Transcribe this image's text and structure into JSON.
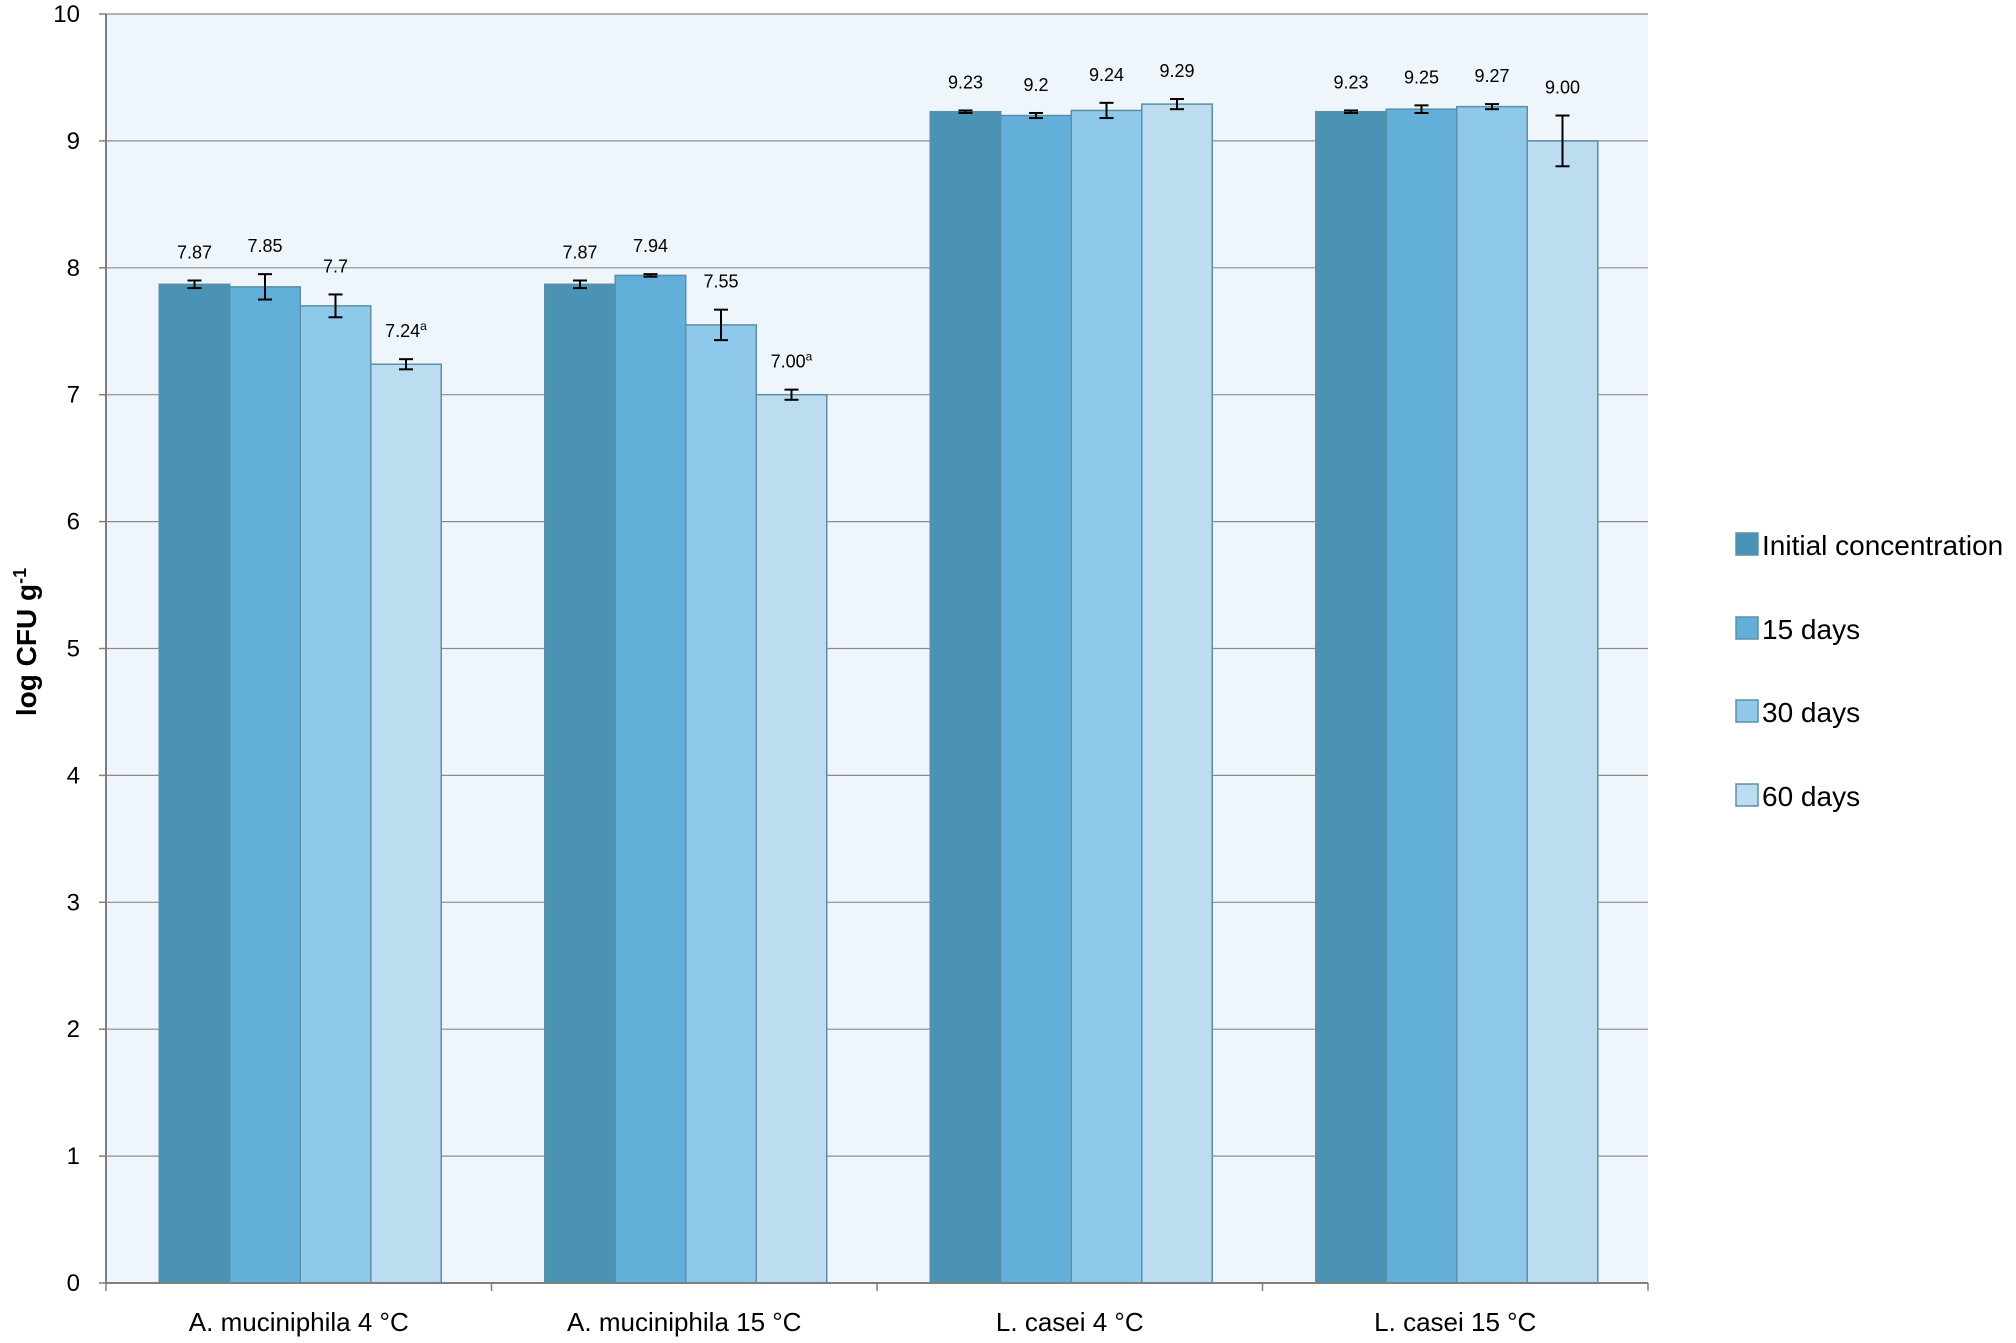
{
  "chart_data": {
    "type": "bar",
    "title": "",
    "xlabel": "",
    "ylabel": "log CFU g",
    "ylabel_sup": "-1",
    "ylim": [
      0,
      10
    ],
    "yticks": [
      "0",
      "1",
      "2",
      "3",
      "4",
      "5",
      "6",
      "7",
      "8",
      "9",
      "10"
    ],
    "grid": true,
    "legend_position": "right",
    "categories": [
      "A. muciniphila 4 °C",
      "A. muciniphila 15 °C",
      "L. casei 4 °C",
      "L. casei 15 °C"
    ],
    "series": [
      {
        "name": "Initial concentration",
        "color": "#4b93b5",
        "values": [
          7.87,
          7.87,
          9.23,
          9.23
        ],
        "errors": [
          0.03,
          0.03,
          0.01,
          0.01
        ],
        "labels": [
          "7.87",
          "7.87",
          "9.23",
          "9.23"
        ],
        "label_sup": [
          "",
          "",
          "",
          ""
        ]
      },
      {
        "name": "15 days",
        "color": "#62b0d9",
        "values": [
          7.85,
          7.94,
          9.2,
          9.25
        ],
        "errors": [
          0.1,
          0.01,
          0.02,
          0.03
        ],
        "labels": [
          "7.85",
          "7.94",
          "9.2",
          "9.25"
        ],
        "label_sup": [
          "",
          "",
          "",
          ""
        ]
      },
      {
        "name": "30 days",
        "color": "#8ec8eb",
        "values": [
          7.7,
          7.55,
          9.24,
          9.27
        ],
        "errors": [
          0.09,
          0.12,
          0.06,
          0.02
        ],
        "labels": [
          "7.7",
          "7.55",
          "9.24",
          "9.27"
        ],
        "label_sup": [
          "",
          "",
          "",
          ""
        ]
      },
      {
        "name": "60 days",
        "color": "#bcdcf0",
        "values": [
          7.24,
          7.0,
          9.29,
          9.0
        ],
        "errors": [
          0.04,
          0.04,
          0.04,
          0.2
        ],
        "labels": [
          "7.24",
          "7.00",
          "9.29",
          "9.00"
        ],
        "label_sup": [
          "a",
          "a",
          "",
          ""
        ]
      }
    ]
  },
  "colors": {
    "plot_background": "#eef5fb",
    "gridline": "#8c8c8c",
    "axis": "#7f7f7f",
    "bar_border": "#5b8fa8"
  }
}
